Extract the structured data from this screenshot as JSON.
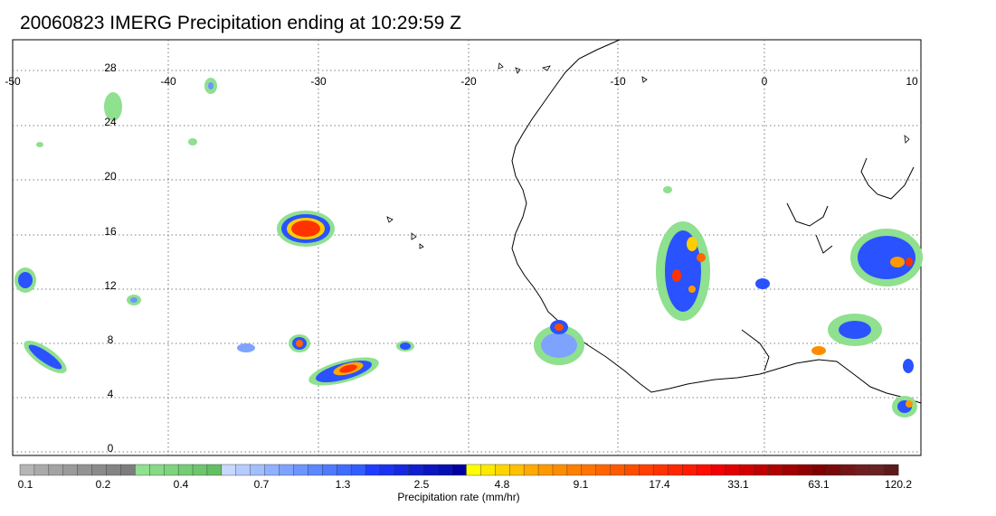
{
  "title": "20060823 IMERG Precipitation ending at 10:29:59 Z",
  "map": {
    "lon_ticks": [
      "-50",
      "-40",
      "-30",
      "-20",
      "-10",
      "0",
      "10"
    ],
    "lat_ticks": [
      "28",
      "24",
      "20",
      "16",
      "12",
      "8",
      "4",
      "0"
    ],
    "lon_range": [
      -50,
      10
    ],
    "lat_range": [
      -0.5,
      30
    ],
    "grid": "dotted",
    "coastline_color": "#000000"
  },
  "colorbar": {
    "title": "Precipitation rate (mm/hr)",
    "labels": [
      "0.1",
      "0.2",
      "0.4",
      "0.7",
      "1.3",
      "2.5",
      "4.8",
      "9.1",
      "17.4",
      "33.1",
      "63.1",
      "120.2"
    ],
    "colors": [
      "#b5b5b5",
      "#aaaaaa",
      "#a3a3a3",
      "#9b9b9b",
      "#939393",
      "#8b8b8b",
      "#848484",
      "#7d7d7d",
      "#8fe08f",
      "#86da86",
      "#7ed47e",
      "#75cd75",
      "#6dc66d",
      "#64bf64",
      "#c8d8ff",
      "#b6cbff",
      "#a3beff",
      "#91b0ff",
      "#7ea3ff",
      "#6c95ff",
      "#5a88ff",
      "#4d7aff",
      "#406cff",
      "#335eff",
      "#1f3cff",
      "#1a33f0",
      "#1429e0",
      "#0f1fd0",
      "#0a15c0",
      "#0510b0",
      "#0000a0",
      "#ffff00",
      "#ffe800",
      "#ffd400",
      "#ffc000",
      "#ffaa00",
      "#ff9900",
      "#ff8c00",
      "#ff7f00",
      "#ff7300",
      "#ff6600",
      "#ff5a00",
      "#ff4d00",
      "#ff4000",
      "#ff3300",
      "#ff2600",
      "#ff1a00",
      "#ff0d00",
      "#f00000",
      "#e00000",
      "#d00000",
      "#c00000",
      "#b00000",
      "#a00000",
      "#900000",
      "#800000",
      "#7a0a0a",
      "#741414",
      "#6e1e1e",
      "#682222",
      "#5c1a1a"
    ]
  }
}
